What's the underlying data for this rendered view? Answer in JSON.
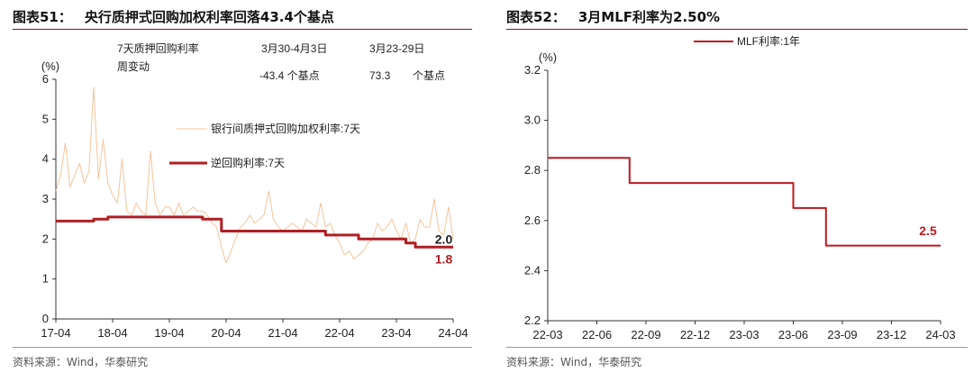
{
  "left_panel": {
    "title_num": "图表51：",
    "title_text": "央行质押式回购加权利率回落43.4个基点",
    "source": "资料来源：Wind，华泰研究",
    "info_table": {
      "row_label": "7天质押回购利率周变动",
      "col1_header": "3月30-4月3日",
      "col2_header": "3月23-29日",
      "col1_value": "-43.4 个基点",
      "col2_value": "73.3",
      "col2_unit": "个基点"
    }
  },
  "right_panel": {
    "title_num": "图表52：",
    "title_text": "3月MLF利率为2.50%",
    "source": "资料来源：Wind，华泰研究"
  },
  "chart_data": [
    {
      "type": "line",
      "title": "央行质押式回购加权利率回落43.4个基点",
      "ylabel": "(%)",
      "xlabel": "",
      "ylim": [
        0,
        6
      ],
      "yticks": [
        "0",
        "1",
        "2",
        "3",
        "4",
        "5",
        "6"
      ],
      "xticks": [
        "17-04",
        "18-04",
        "19-04",
        "20-04",
        "21-04",
        "22-04",
        "23-04",
        "24-04"
      ],
      "x_range": [
        "2017-04",
        "2024-04"
      ],
      "legend_placement": "center",
      "series": [
        {
          "name": "银行间质押式回购加权利率:7天",
          "color": "#f4c49c",
          "points": [
            [
              "2017-04",
              3.2
            ],
            [
              "2017-05",
              3.6
            ],
            [
              "2017-06",
              4.4
            ],
            [
              "2017-07",
              3.3
            ],
            [
              "2017-08",
              3.6
            ],
            [
              "2017-09",
              3.9
            ],
            [
              "2017-10",
              3.4
            ],
            [
              "2017-11",
              3.7
            ],
            [
              "2017-12",
              5.8
            ],
            [
              "2018-01",
              3.5
            ],
            [
              "2018-02",
              4.5
            ],
            [
              "2018-03",
              3.4
            ],
            [
              "2018-04",
              3.1
            ],
            [
              "2018-05",
              2.9
            ],
            [
              "2018-06",
              4.0
            ],
            [
              "2018-07",
              2.7
            ],
            [
              "2018-08",
              2.6
            ],
            [
              "2018-09",
              2.9
            ],
            [
              "2018-10",
              2.7
            ],
            [
              "2018-11",
              2.6
            ],
            [
              "2018-12",
              4.2
            ],
            [
              "2019-01",
              2.9
            ],
            [
              "2019-02",
              2.6
            ],
            [
              "2019-03",
              2.8
            ],
            [
              "2019-04",
              2.8
            ],
            [
              "2019-05",
              2.6
            ],
            [
              "2019-06",
              2.9
            ],
            [
              "2019-07",
              2.6
            ],
            [
              "2019-08",
              2.7
            ],
            [
              "2019-09",
              2.8
            ],
            [
              "2019-10",
              2.7
            ],
            [
              "2019-11",
              2.7
            ],
            [
              "2019-12",
              2.6
            ],
            [
              "2020-01",
              2.4
            ],
            [
              "2020-02",
              2.3
            ],
            [
              "2020-03",
              1.8
            ],
            [
              "2020-04",
              1.4
            ],
            [
              "2020-05",
              1.7
            ],
            [
              "2020-06",
              2.0
            ],
            [
              "2020-07",
              2.3
            ],
            [
              "2020-08",
              2.4
            ],
            [
              "2020-09",
              2.6
            ],
            [
              "2020-10",
              2.4
            ],
            [
              "2020-11",
              2.5
            ],
            [
              "2020-12",
              2.6
            ],
            [
              "2021-01",
              3.2
            ],
            [
              "2021-02",
              2.5
            ],
            [
              "2021-03",
              2.3
            ],
            [
              "2021-04",
              2.2
            ],
            [
              "2021-05",
              2.3
            ],
            [
              "2021-06",
              2.4
            ],
            [
              "2021-07",
              2.3
            ],
            [
              "2021-08",
              2.2
            ],
            [
              "2021-09",
              2.5
            ],
            [
              "2021-10",
              2.4
            ],
            [
              "2021-11",
              2.3
            ],
            [
              "2021-12",
              2.9
            ],
            [
              "2022-01",
              2.3
            ],
            [
              "2022-02",
              2.4
            ],
            [
              "2022-03",
              2.1
            ],
            [
              "2022-04",
              1.9
            ],
            [
              "2022-05",
              1.6
            ],
            [
              "2022-06",
              1.7
            ],
            [
              "2022-07",
              1.5
            ],
            [
              "2022-08",
              1.6
            ],
            [
              "2022-09",
              1.7
            ],
            [
              "2022-10",
              1.9
            ],
            [
              "2022-11",
              2.0
            ],
            [
              "2022-12",
              2.4
            ],
            [
              "2023-01",
              2.2
            ],
            [
              "2023-02",
              2.3
            ],
            [
              "2023-03",
              2.5
            ],
            [
              "2023-04",
              2.2
            ],
            [
              "2023-05",
              2.0
            ],
            [
              "2023-06",
              2.4
            ],
            [
              "2023-07",
              1.9
            ],
            [
              "2023-08",
              2.0
            ],
            [
              "2023-09",
              2.5
            ],
            [
              "2023-10",
              2.3
            ],
            [
              "2023-11",
              2.3
            ],
            [
              "2023-12",
              3.0
            ],
            [
              "2024-01",
              2.2
            ],
            [
              "2024-02",
              2.1
            ],
            [
              "2024-03",
              2.8
            ],
            [
              "2024-04",
              2.0
            ]
          ]
        },
        {
          "name": "逆回购利率:7天",
          "color": "#b01f24",
          "points": [
            [
              "2017-04",
              2.45
            ],
            [
              "2017-12",
              2.45
            ],
            [
              "2017-12",
              2.5
            ],
            [
              "2018-03",
              2.5
            ],
            [
              "2018-03",
              2.55
            ],
            [
              "2019-11",
              2.55
            ],
            [
              "2019-11",
              2.5
            ],
            [
              "2020-03",
              2.5
            ],
            [
              "2020-03",
              2.2
            ],
            [
              "2022-01",
              2.2
            ],
            [
              "2022-01",
              2.1
            ],
            [
              "2022-08",
              2.1
            ],
            [
              "2022-08",
              2.0
            ],
            [
              "2023-06",
              2.0
            ],
            [
              "2023-06",
              1.9
            ],
            [
              "2023-08",
              1.9
            ],
            [
              "2023-08",
              1.8
            ],
            [
              "2024-04",
              1.8
            ]
          ]
        }
      ],
      "annotations": [
        {
          "text": "2.0",
          "x": "2024-02",
          "y": 2.0,
          "color": "#222222"
        },
        {
          "text": "1.8",
          "x": "2024-02",
          "y": 1.5,
          "color": "#b01f24"
        }
      ]
    },
    {
      "type": "line",
      "title": "3月MLF利率为2.50%",
      "ylabel": "(%)",
      "xlabel": "",
      "ylim": [
        2.2,
        3.2
      ],
      "yticks": [
        "2.2",
        "2.4",
        "2.6",
        "2.8",
        "3.0",
        "3.2"
      ],
      "xticks": [
        "22-03",
        "22-06",
        "22-09",
        "22-12",
        "23-03",
        "23-06",
        "23-09",
        "23-12",
        "24-03"
      ],
      "x_range": [
        "2022-03",
        "2024-03"
      ],
      "legend_placement": "top-center",
      "series": [
        {
          "name": "MLF利率:1年",
          "color": "#c0181e",
          "points": [
            [
              "2022-03",
              2.85
            ],
            [
              "2022-08",
              2.85
            ],
            [
              "2022-08",
              2.75
            ],
            [
              "2023-06",
              2.75
            ],
            [
              "2023-06",
              2.65
            ],
            [
              "2023-08",
              2.65
            ],
            [
              "2023-08",
              2.5
            ],
            [
              "2024-03",
              2.5
            ]
          ]
        }
      ],
      "annotations": [
        {
          "text": "2.5",
          "x": "2024-03",
          "y": 2.56,
          "color": "#c0181e"
        }
      ]
    }
  ]
}
